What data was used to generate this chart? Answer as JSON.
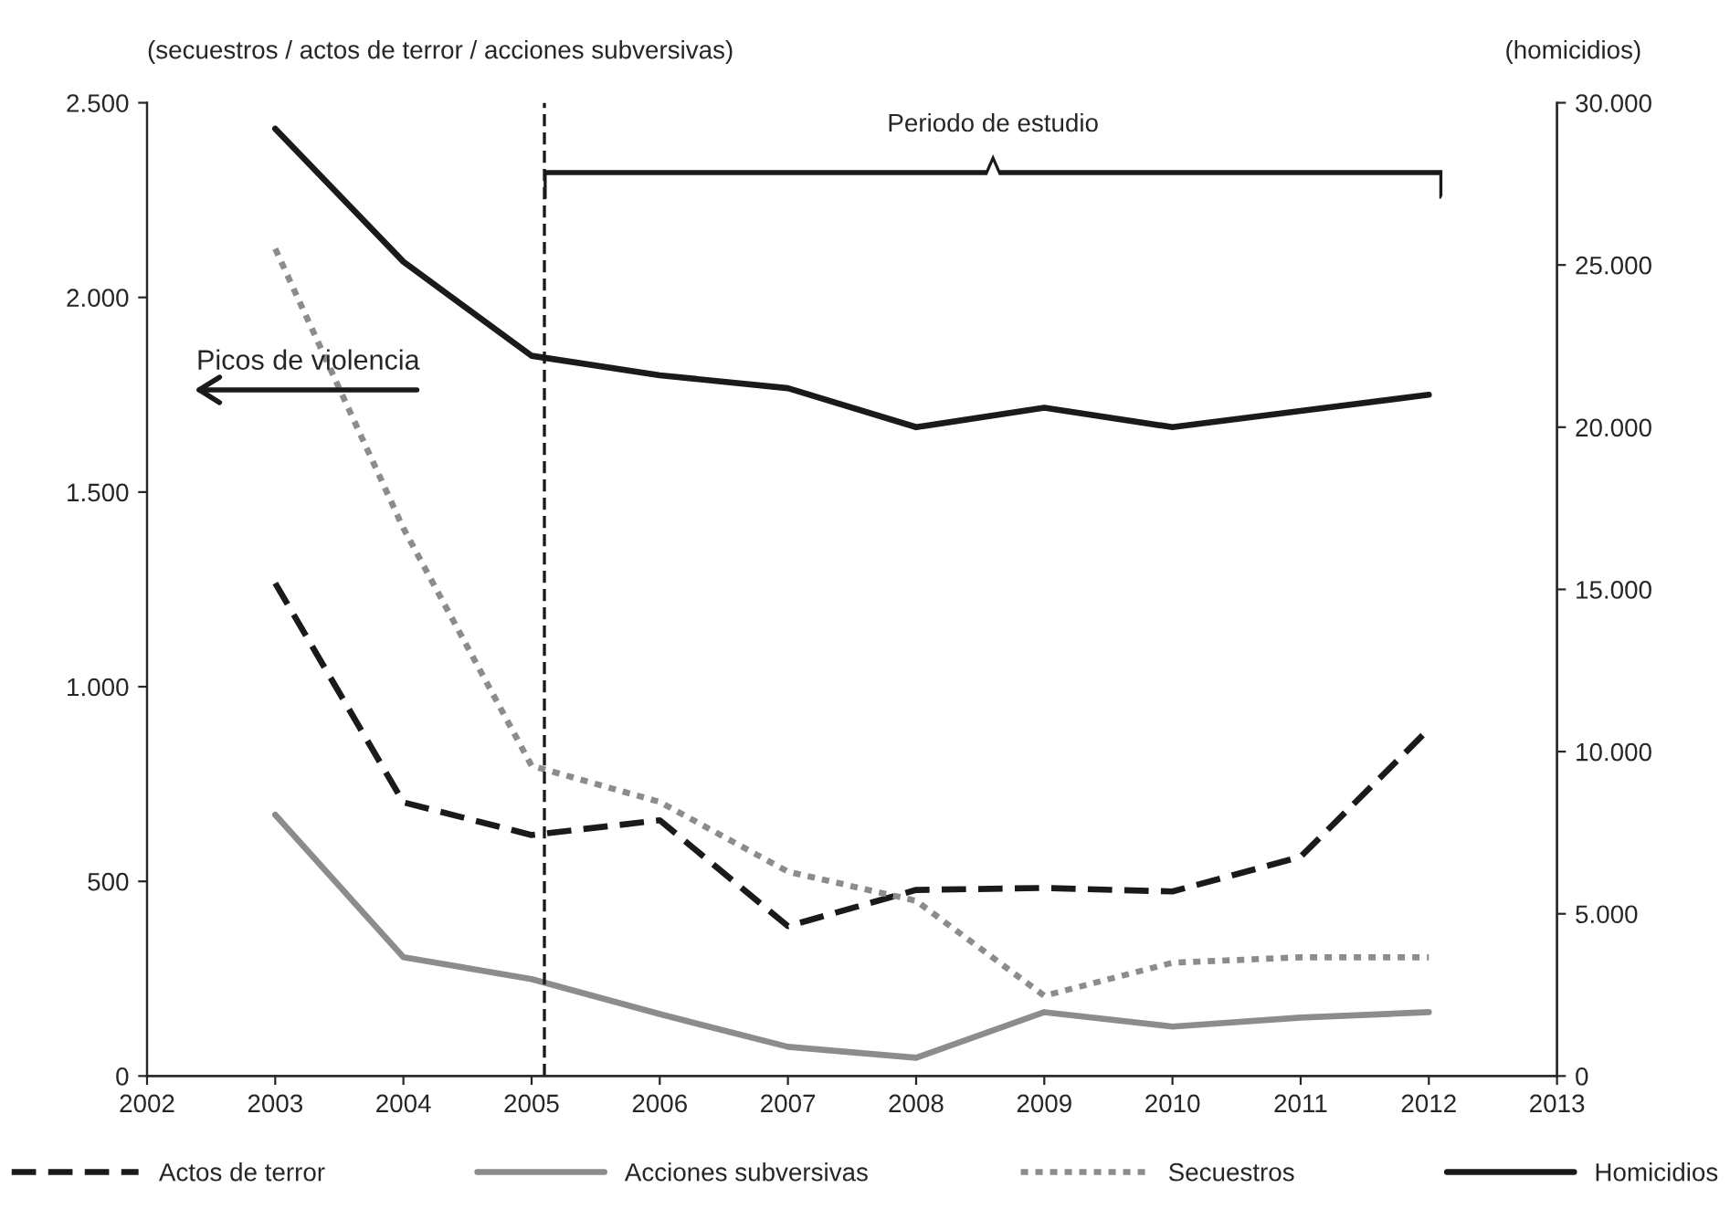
{
  "chart_data": {
    "type": "line",
    "x": [
      2003,
      2004,
      2005,
      2006,
      2007,
      2008,
      2009,
      2010,
      2011,
      2012
    ],
    "series": [
      {
        "name": "Actos de terror",
        "color": "#1a1a1a",
        "line_style": "dashed",
        "values": [
          1266,
          703,
          619,
          657,
          385,
          478,
          483,
          474,
          563,
          891
        ]
      },
      {
        "name": "Acciones subversivas",
        "color": "#8c8c8c",
        "line_style": "solid",
        "values": [
          671,
          305,
          249,
          159,
          75,
          47,
          164,
          127,
          150,
          164
        ]
      },
      {
        "name": "Secuestros",
        "color": "#8c8c8c",
        "line_style": "dotted",
        "values": [
          2125,
          1407,
          797,
          704,
          525,
          450,
          206,
          291,
          305,
          305
        ]
      },
      {
        "name": "Homicidios",
        "color": "#1a1a1a",
        "line_style": "solid",
        "axis": "y2",
        "values": [
          29200,
          25100,
          22200,
          21600,
          21200,
          20000,
          20600,
          20000,
          20500,
          21000
        ]
      }
    ],
    "ylabel": "(secuestros / actos de terror / acciones subversivas)",
    "y2label": "(homicidios)",
    "xlim": [
      2002,
      2013
    ],
    "xticks": [
      2002,
      2003,
      2004,
      2005,
      2006,
      2007,
      2008,
      2009,
      2010,
      2011,
      2012,
      2013
    ],
    "ylim": [
      0,
      2500
    ],
    "yticks": [
      0,
      500,
      {
        "value": 1000,
        "label": "1.000"
      },
      {
        "value": 1500,
        "label": "1.500"
      },
      {
        "value": 2000,
        "label": "2.000"
      },
      {
        "value": 2500,
        "label": "2.500"
      }
    ],
    "y2lim": [
      0,
      30000
    ],
    "y2ticks": [
      0,
      {
        "value": 5000,
        "label": "5.000"
      },
      {
        "value": 10000,
        "label": "10.000"
      },
      {
        "value": 15000,
        "label": "15.000"
      },
      {
        "value": 20000,
        "label": "20.000"
      },
      {
        "value": 25000,
        "label": "25.000"
      },
      {
        "value": 30000,
        "label": "30.000"
      }
    ],
    "ref_lines": [
      {
        "axis": "x",
        "value": 2005.1,
        "color": "#1a1a1a",
        "line_style": "dashed"
      }
    ],
    "annotations": [
      "Periodo de estudio",
      "Picos de violencia"
    ],
    "grid": false,
    "legend": "bottom",
    "marker": "none"
  }
}
